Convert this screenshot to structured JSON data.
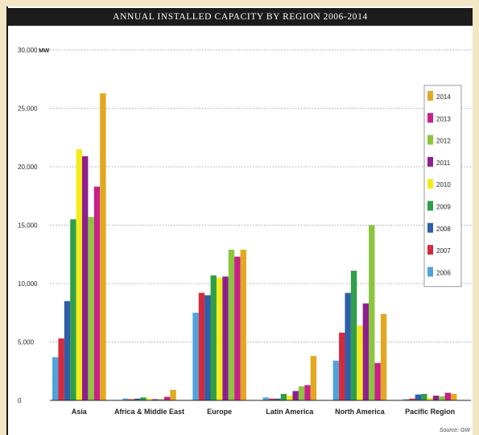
{
  "chart_data": {
    "type": "bar",
    "title": "ANNUAL INSTALLED CAPACITY BY REGION 2006-2014",
    "ylabel": "MW",
    "ylim": [
      0,
      30000
    ],
    "yticks": [
      "0",
      "5,000",
      "10,000",
      "15,000",
      "20,000",
      "25,000",
      "30,000"
    ],
    "grid": true,
    "legend_position": "right",
    "categories": [
      "Asia",
      "Africa & Middle East",
      "Europe",
      "Latin America",
      "North America",
      "Pacific Region"
    ],
    "series": [
      {
        "name": "2006",
        "color": "#4fa3db",
        "values": [
          3700,
          150,
          7500,
          250,
          3400,
          100
        ]
      },
      {
        "name": "2007",
        "color": "#d42a3b",
        "values": [
          5300,
          100,
          9200,
          150,
          5800,
          150
        ]
      },
      {
        "name": "2008",
        "color": "#2e5ea9",
        "values": [
          8500,
          150,
          9000,
          150,
          9200,
          500
        ]
      },
      {
        "name": "2009",
        "color": "#2f9e48",
        "values": [
          15500,
          250,
          10700,
          550,
          11100,
          550
        ]
      },
      {
        "name": "2010",
        "color": "#f4eb1f",
        "values": [
          21500,
          150,
          10500,
          400,
          6400,
          200
        ]
      },
      {
        "name": "2011",
        "color": "#8e1f8f",
        "values": [
          20900,
          100,
          10600,
          800,
          8300,
          400
        ]
      },
      {
        "name": "2012",
        "color": "#8cc63f",
        "values": [
          15700,
          100,
          12900,
          1200,
          15000,
          350
        ]
      },
      {
        "name": "2013",
        "color": "#c8208a",
        "values": [
          18300,
          300,
          12300,
          1300,
          3200,
          650
        ]
      },
      {
        "name": "2014",
        "color": "#e3a822",
        "values": [
          26300,
          900,
          12900,
          3800,
          7400,
          550
        ]
      }
    ],
    "source": "Source: GW"
  }
}
